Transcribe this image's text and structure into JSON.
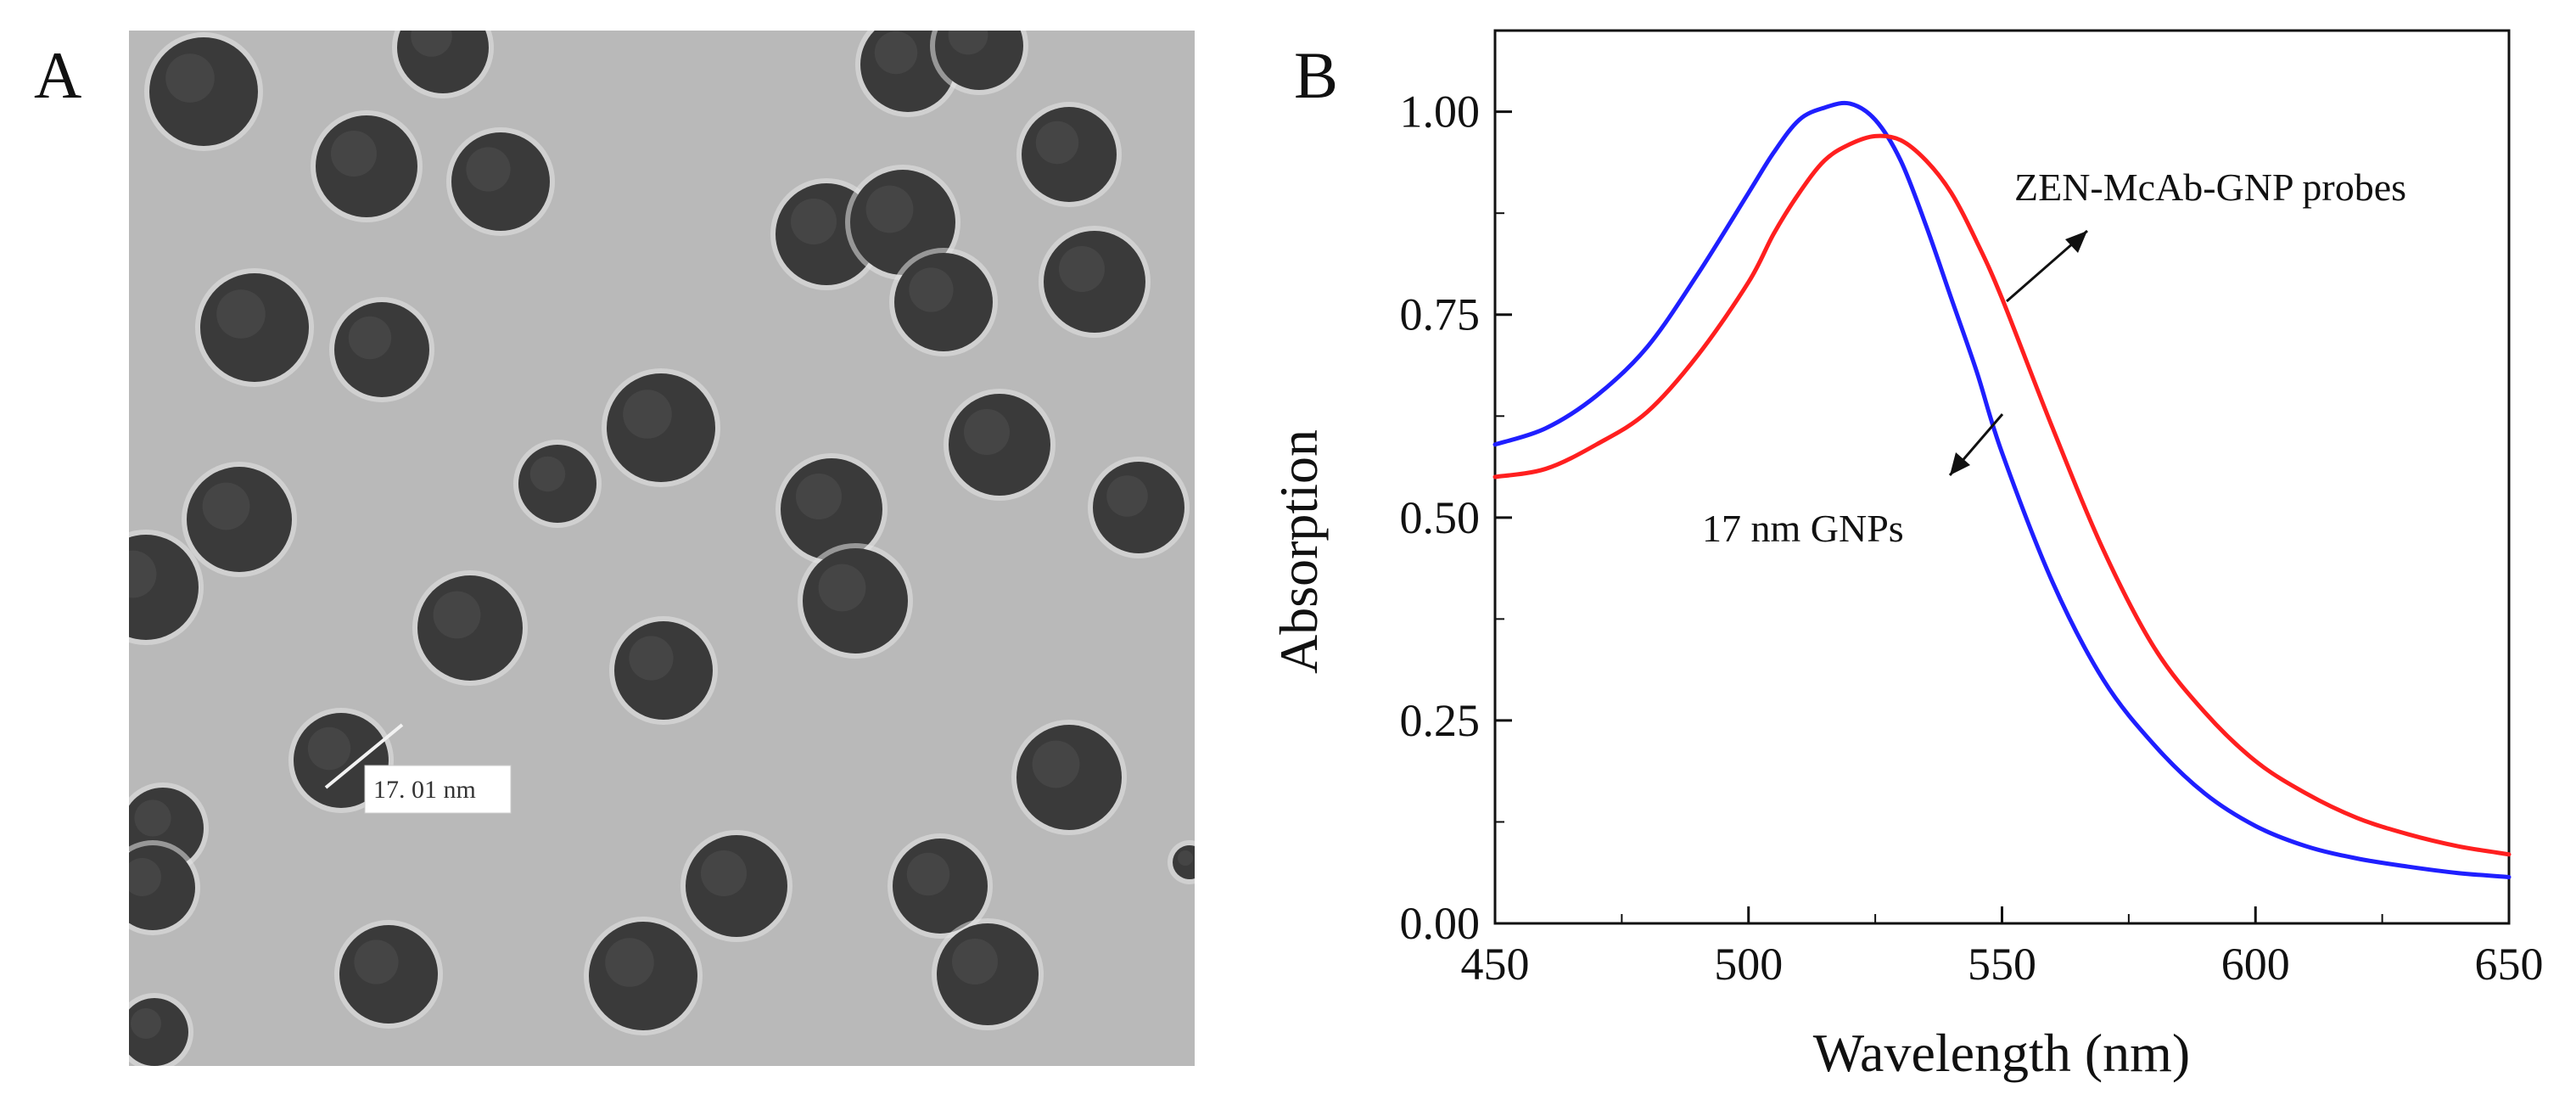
{
  "panels": {
    "a_label": "A",
    "b_label": "B"
  },
  "micrograph": {
    "scale_annotation": "17. 01  nm",
    "background_color": "#b9b9b9",
    "particle_color": "#3a3a3a"
  },
  "chart_data": {
    "type": "line",
    "title": "",
    "xlabel": "Wavelength (nm)",
    "ylabel": "Absorption",
    "xlim": [
      450,
      650
    ],
    "ylim": [
      0,
      1.1
    ],
    "x_ticks": [
      450,
      500,
      550,
      600,
      650
    ],
    "x_tick_labels": [
      "450",
      "500",
      "550",
      "600",
      "650"
    ],
    "y_ticks": [
      0,
      0.25,
      0.5,
      0.75,
      1.0
    ],
    "y_tick_labels": [
      "0.00",
      "0.25",
      "0.50",
      "0.75",
      "1.00"
    ],
    "grid": false,
    "series": [
      {
        "label_key": "blue",
        "color": "#1f1fff",
        "x": [
          450,
          460,
          470,
          480,
          490,
          500,
          505,
          510,
          515,
          520,
          525,
          530,
          535,
          540,
          545,
          550,
          560,
          570,
          580,
          590,
          600,
          610,
          620,
          630,
          640,
          650
        ],
        "y": [
          0.59,
          0.61,
          0.65,
          0.71,
          0.8,
          0.9,
          0.95,
          0.99,
          1.005,
          1.01,
          0.99,
          0.94,
          0.86,
          0.77,
          0.68,
          0.58,
          0.42,
          0.3,
          0.22,
          0.16,
          0.12,
          0.095,
          0.08,
          0.07,
          0.062,
          0.057
        ]
      },
      {
        "label_key": "red",
        "color": "#ff1f1f",
        "x": [
          450,
          460,
          470,
          480,
          490,
          500,
          505,
          510,
          515,
          520,
          525,
          530,
          535,
          540,
          545,
          550,
          560,
          570,
          580,
          590,
          600,
          610,
          620,
          630,
          640,
          650
        ],
        "y": [
          0.55,
          0.56,
          0.59,
          0.63,
          0.7,
          0.79,
          0.85,
          0.9,
          0.94,
          0.96,
          0.97,
          0.965,
          0.94,
          0.9,
          0.84,
          0.77,
          0.61,
          0.46,
          0.34,
          0.26,
          0.2,
          0.16,
          0.13,
          0.11,
          0.095,
          0.085
        ]
      }
    ],
    "annotations": [
      {
        "text": "ZEN-McAb-GNP probes",
        "points_to": "red"
      },
      {
        "text": "17 nm GNPs",
        "points_to": "blue"
      }
    ]
  }
}
